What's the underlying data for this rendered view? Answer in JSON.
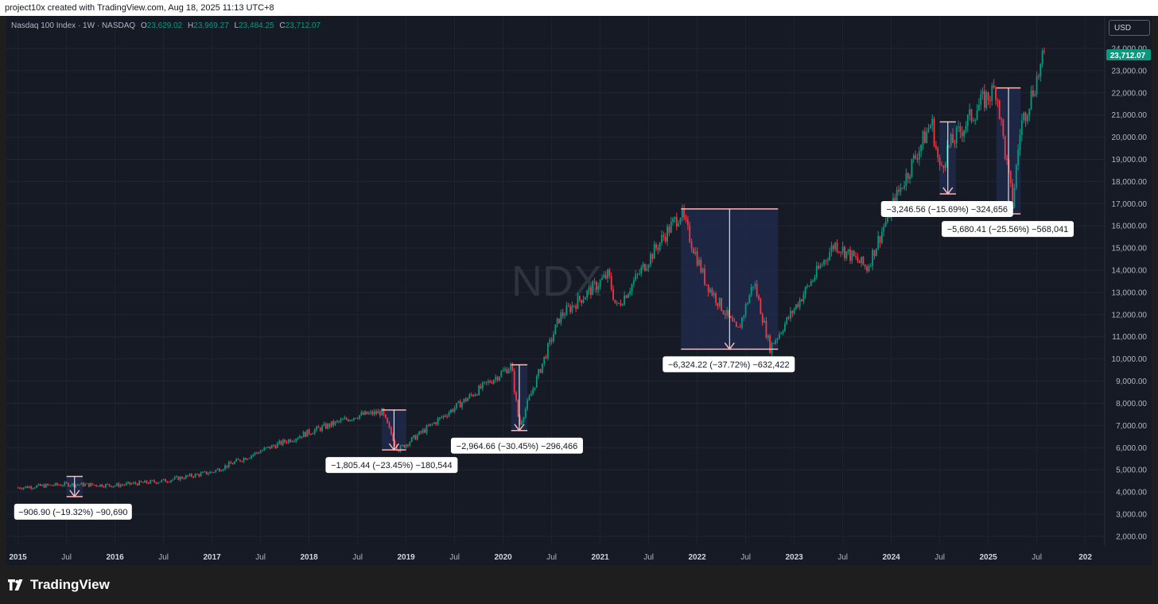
{
  "header": {
    "attribution": "project10x created with TradingView.com, Aug 18, 2025 11:13 UTC+8"
  },
  "legend": {
    "symbol": "Nasdaq 100 Index · 1W · NASDAQ",
    "o_key": "O",
    "o": "23,629.02",
    "h_key": "H",
    "h": "23,969.27",
    "l_key": "L",
    "l": "23,484.25",
    "c_key": "C",
    "c": "23,712.07"
  },
  "currency_button": "USD",
  "watermark": "NDX",
  "brand": "TradingView",
  "colors": {
    "up": "#089981",
    "down": "#f23645",
    "background": "#161a25",
    "range_box": "#1f2a4a",
    "range_line": "#ffb3b3",
    "price_tag": "#089981"
  },
  "chart_data": {
    "type": "candlestick",
    "timeframe": "1W",
    "x": [
      "2015-01",
      "2015-07",
      "2016-01",
      "2016-07",
      "2017-01",
      "2017-07",
      "2018-01",
      "2018-07",
      "2018-10",
      "2018-12",
      "2019-07",
      "2020-02",
      "2020-03",
      "2020-08",
      "2021-02",
      "2021-03",
      "2021-09",
      "2021-11",
      "2022-02",
      "2022-06",
      "2022-08",
      "2022-10",
      "2023-06",
      "2023-10",
      "2024-01",
      "2024-06",
      "2024-07",
      "2024-08",
      "2024-12",
      "2025-02",
      "2025-03",
      "2025-04",
      "2025-05",
      "2025-08"
    ],
    "close": [
      4200,
      4350,
      4300,
      4500,
      4900,
      5850,
      6700,
      7450,
      7600,
      5900,
      7800,
      9700,
      7000,
      11900,
      13800,
      12300,
      15600,
      16600,
      13500,
      11200,
      13500,
      10500,
      15200,
      14100,
      16800,
      20700,
      18500,
      19500,
      21500,
      22200,
      19500,
      17000,
      20500,
      23712
    ],
    "ylim": [
      1500,
      24500
    ],
    "y_ticks": [
      "24,000.00",
      "23,000.00",
      "22,000.00",
      "21,000.00",
      "20,000.00",
      "19,000.00",
      "18,000.00",
      "17,000.00",
      "16,000.00",
      "15,000.00",
      "14,000.00",
      "13,000.00",
      "12,000.00",
      "11,000.00",
      "10,000.00",
      "9,000.00",
      "8,000.00",
      "7,000.00",
      "6,000.00",
      "5,000.00",
      "4,000.00",
      "3,000.00",
      "2,000.00"
    ],
    "x_ticks": [
      "2015",
      "Jul",
      "2016",
      "Jul",
      "2017",
      "Jul",
      "2018",
      "Jul",
      "2019",
      "Jul",
      "2020",
      "Jul",
      "2021",
      "Jul",
      "2022",
      "Jul",
      "2023",
      "Jul",
      "2024",
      "Jul",
      "2025",
      "Jul",
      "202"
    ],
    "last_price": "23,712.07",
    "drawdowns": [
      {
        "start": "2015-07",
        "end": "2015-08",
        "high": 4700,
        "low": 3793,
        "label": "−906.90 (−19.32%) −90,690"
      },
      {
        "start": "2018-10",
        "end": "2018-12",
        "high": 7700,
        "low": 5895,
        "label": "−1,805.44 (−23.45%) −180,544"
      },
      {
        "start": "2020-02",
        "end": "2020-03",
        "high": 9735,
        "low": 6770,
        "label": "−2,964.66 (−30.45%) −296,466"
      },
      {
        "start": "2021-11",
        "end": "2022-10",
        "high": 16765,
        "low": 10441,
        "label": "−6,324.22 (−37.72%) −632,422"
      },
      {
        "start": "2024-07",
        "end": "2024-08",
        "high": 20690,
        "low": 17443,
        "label": "−3,246.56 (−15.69%) −324,656"
      },
      {
        "start": "2025-02",
        "end": "2025-04",
        "high": 22222,
        "low": 16542,
        "label": "−5,680.41 (−25.56%) −568,041"
      }
    ]
  }
}
